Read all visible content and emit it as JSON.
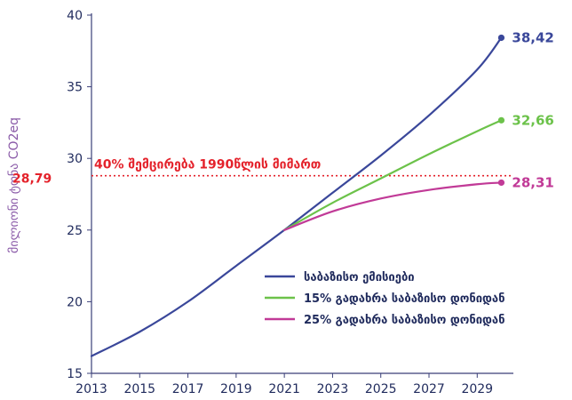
{
  "chart_data": {
    "type": "line",
    "ylabel": "მილიონი ტონა CO2eq",
    "xlim": [
      2013,
      2030.5
    ],
    "ylim": [
      15,
      40
    ],
    "x_ticks": [
      2013,
      2015,
      2017,
      2019,
      2021,
      2023,
      2025,
      2027,
      2029
    ],
    "y_ticks": [
      15,
      20,
      25,
      30,
      35,
      40
    ],
    "grid": false,
    "legend_position": "bottom-right",
    "reference_line": {
      "value": 28.79,
      "value_label": "28,79",
      "label": "40% შემცირება 1990წლის მიმართ",
      "color": "#e4222b"
    },
    "series": [
      {
        "name": "საბაზისო ემისიები",
        "color": "#3a479a",
        "x": [
          2013,
          2015,
          2017,
          2019,
          2021,
          2023,
          2025,
          2027,
          2029,
          2030
        ],
        "values": [
          16.2,
          17.9,
          20.0,
          22.5,
          25.0,
          27.6,
          30.2,
          33.0,
          36.2,
          38.42
        ],
        "end_label": "38,42"
      },
      {
        "name": "15% გადახრა საბაზისო დონიდან",
        "color": "#6cc24a",
        "x": [
          2021,
          2023,
          2025,
          2027,
          2029,
          2030
        ],
        "values": [
          25.0,
          26.9,
          28.6,
          30.3,
          31.9,
          32.66
        ],
        "end_label": "32,66"
      },
      {
        "name": "25% გადახრა საბაზისო დონიდან",
        "color": "#c13a97",
        "x": [
          2021,
          2023,
          2025,
          2027,
          2029,
          2030
        ],
        "values": [
          25.0,
          26.3,
          27.2,
          27.8,
          28.2,
          28.31
        ],
        "end_label": "28,31"
      }
    ]
  },
  "colors": {
    "axis": "#3a3f78",
    "tick_text": "#1f2a5c",
    "ylabel": "#8a5aa8"
  }
}
